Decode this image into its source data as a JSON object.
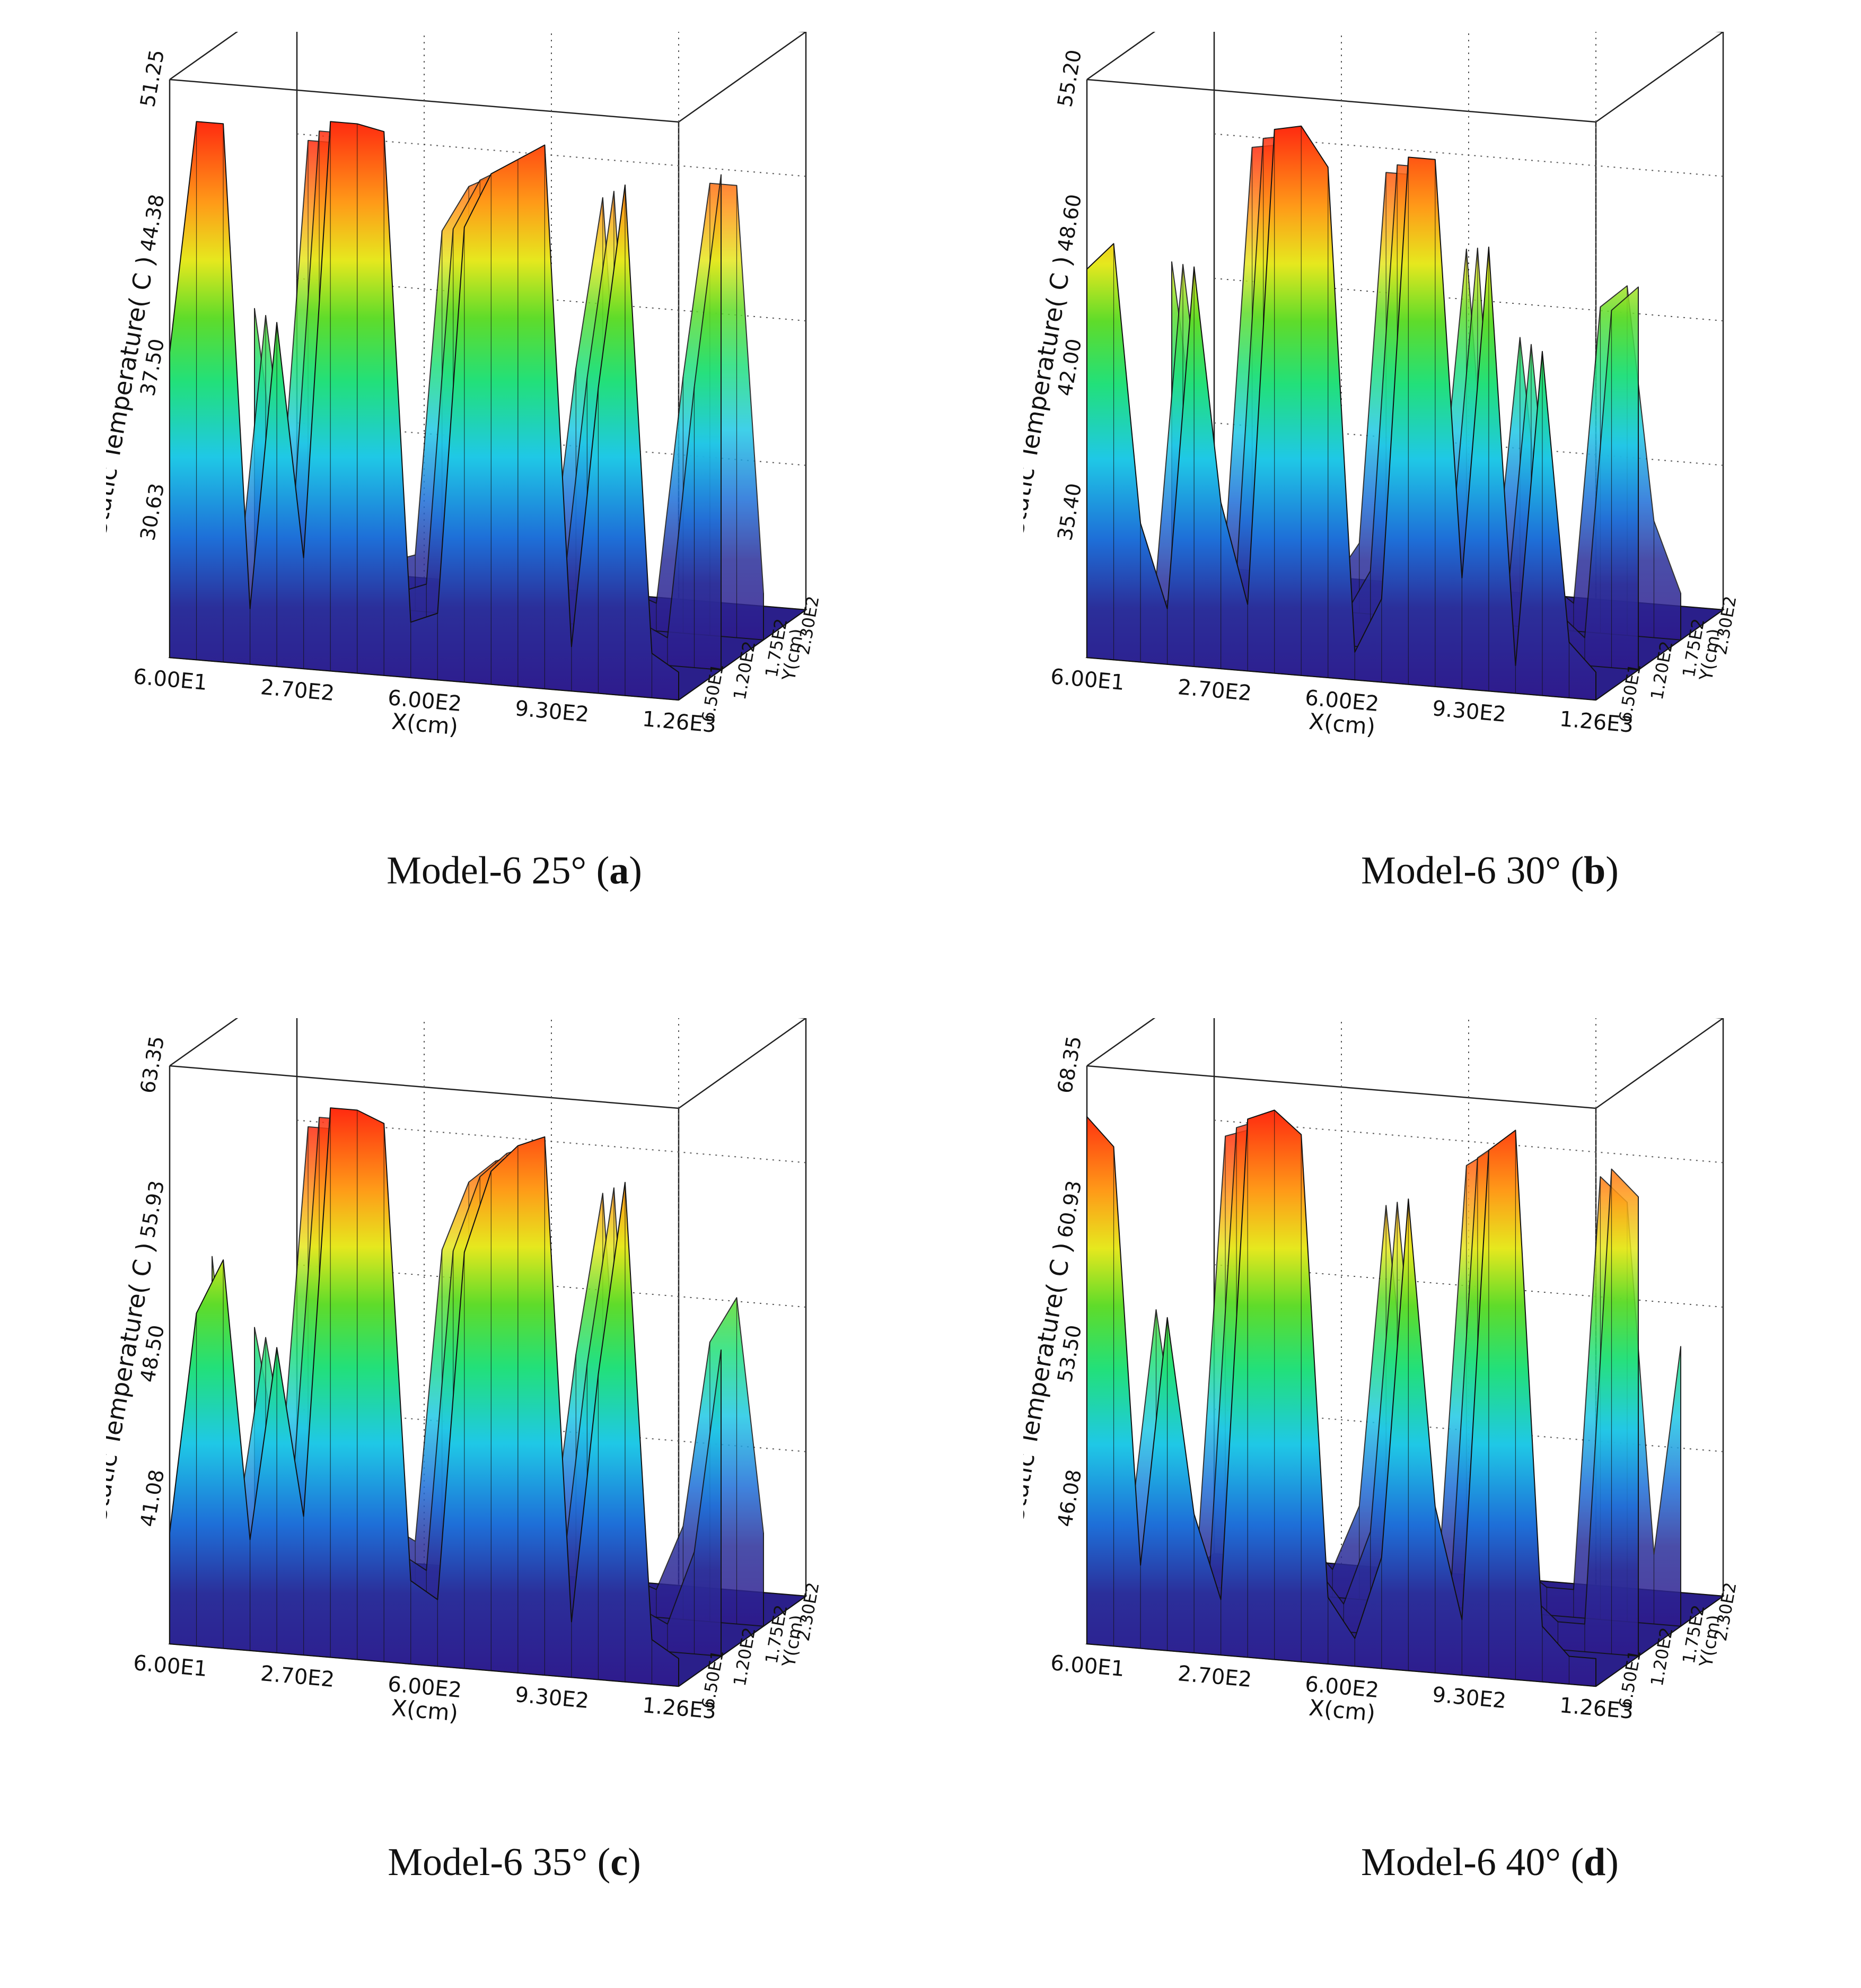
{
  "chart_data": [
    {
      "type": "surface",
      "caption": {
        "prefix": "Model-6 25° (",
        "letter": "a",
        "suffix": ")"
      },
      "zlabel": "Static Temperature( C )",
      "xlabel": "X(cm)",
      "ylabel": "Y(cm)",
      "z_ticks": [
        "30.63",
        "37.50",
        "44.38",
        "51.25"
      ],
      "x_ticks": [
        "6.00E1",
        "2.70E2",
        "6.00E2",
        "9.30E2",
        "1.26E3"
      ],
      "y_ticks": [
        "6.50E1",
        "1.20E2",
        "1.75E2",
        "2.30E2"
      ],
      "zlim": [
        23.75,
        51.25
      ],
      "profile": [
        0.55,
        0.97,
        0.97,
        0.1,
        0.62,
        0.2,
        0.99,
        0.99,
        0.98,
        0.1,
        0.12,
        0.82,
        0.92,
        0.95,
        0.98,
        0.08,
        0.55,
        0.92,
        0.08,
        0.05
      ]
    },
    {
      "type": "surface",
      "caption": {
        "prefix": "Model-6 30° (",
        "letter": "b",
        "suffix": ")"
      },
      "zlabel": "Static Temperature( C )",
      "xlabel": "X(cm)",
      "ylabel": "Y(cm)",
      "z_ticks": [
        "35.40",
        "42.00",
        "48.60",
        "55.20"
      ],
      "x_ticks": [
        "6.00E1",
        "2.70E2",
        "6.00E2",
        "9.30E2",
        "1.26E3"
      ],
      "y_ticks": [
        "6.50E1",
        "1.20E2",
        "1.75E2",
        "2.30E2"
      ],
      "zlim": [
        28.8,
        55.2
      ],
      "profile": [
        0.7,
        0.75,
        0.25,
        0.1,
        0.72,
        0.3,
        0.12,
        0.98,
        0.99,
        0.92,
        0.05,
        0.15,
        0.95,
        0.95,
        0.2,
        0.8,
        0.05,
        0.62,
        0.1,
        0.05
      ]
    },
    {
      "type": "surface",
      "caption": {
        "prefix": "Model-6 35° (",
        "letter": "c",
        "suffix": ")"
      },
      "zlabel": "Static Temperature( C )",
      "xlabel": "X(cm)",
      "ylabel": "Y(cm)",
      "z_ticks": [
        "41.08",
        "48.50",
        "55.93",
        "63.35"
      ],
      "x_ticks": [
        "6.00E1",
        "2.70E2",
        "6.00E2",
        "9.30E2",
        "1.26E3"
      ],
      "y_ticks": [
        "6.50E1",
        "1.20E2",
        "1.75E2",
        "2.30E2"
      ],
      "zlim": [
        33.65,
        63.35
      ],
      "profile": [
        0.2,
        0.6,
        0.7,
        0.2,
        0.55,
        0.25,
        0.99,
        0.99,
        0.97,
        0.15,
        0.12,
        0.75,
        0.9,
        0.95,
        0.97,
        0.1,
        0.55,
        0.9,
        0.08,
        0.05
      ]
    },
    {
      "type": "surface",
      "caption": {
        "prefix": "Model-6 40° (",
        "letter": "d",
        "suffix": ")"
      },
      "zlabel": "Static Temperature( C )",
      "xlabel": "X(cm)",
      "ylabel": "Y(cm)",
      "z_ticks": [
        "46.08",
        "53.50",
        "60.93",
        "68.35"
      ],
      "x_ticks": [
        "6.00E1",
        "2.70E2",
        "6.00E2",
        "9.30E2",
        "1.26E3"
      ],
      "y_ticks": [
        "6.50E1",
        "1.20E2",
        "1.75E2",
        "2.30E2"
      ],
      "zlim": [
        38.65,
        68.35
      ],
      "profile": [
        0.95,
        0.9,
        0.15,
        0.6,
        0.25,
        0.1,
        0.97,
        0.99,
        0.95,
        0.12,
        0.05,
        0.2,
        0.85,
        0.3,
        0.1,
        0.95,
        0.99,
        0.1,
        0.05,
        0.05
      ]
    }
  ]
}
